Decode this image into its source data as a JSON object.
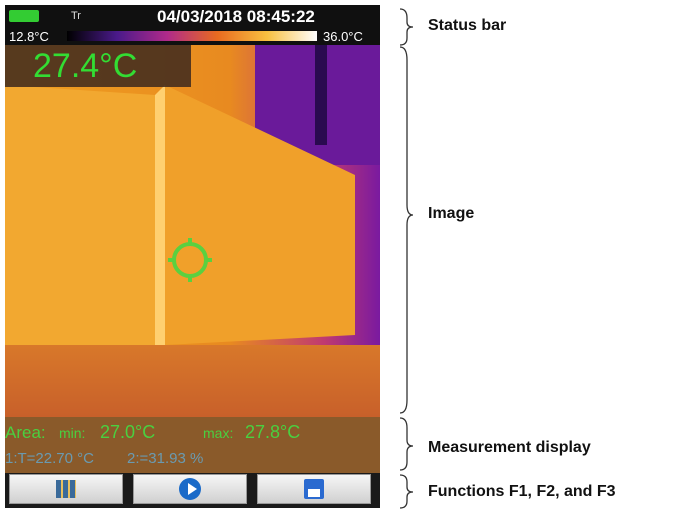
{
  "status_bar": {
    "mode_icon": "Tr",
    "datetime": "04/03/2018 08:45:22"
  },
  "scale": {
    "min": "12.8°C",
    "max": "36.0°C"
  },
  "spot_temperature": "27.4°C",
  "measurement": {
    "area_label": "Area:",
    "min_label": "min:",
    "min_value": "27.0°C",
    "max_label": "max:",
    "max_value": "27.8°C",
    "marker_1": "1:T=22.70 °C",
    "marker_2": "2:=31.93 %"
  },
  "annotations": [
    "Status bar",
    "Image",
    "Measurement display",
    "Functions F1, F2, and F3"
  ]
}
